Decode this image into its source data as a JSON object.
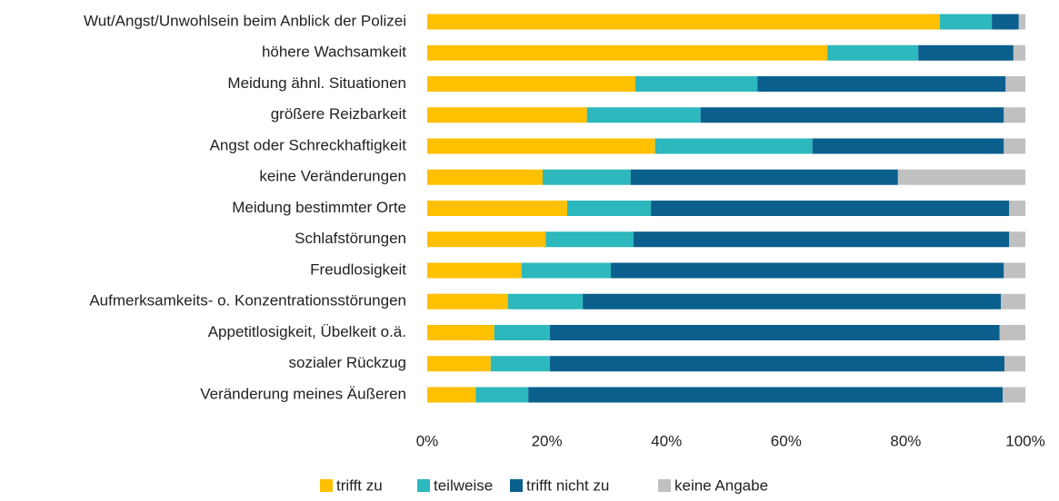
{
  "chart_data": {
    "type": "stacked_bar_horizontal",
    "categories": [
      "Wut/Angst/Unwohlsein beim Anblick der Polizei",
      "höhere Wachsamkeit",
      "Meidung ähnl. Situationen",
      "größere Reizbarkeit",
      "Angst oder Schreckhaftigkeit",
      "keine Veränderungen",
      "Meidung bestimmter Orte",
      "Schlafstörungen",
      "Freudlosigkeit",
      "Aufmerksamkeits- o. Konzentrationsstörungen",
      "Appetitlosigkeit, Übelkeit o.ä.",
      "sozialer Rückzug",
      "Veränderung meines Äußeren"
    ],
    "series": [
      {
        "name": "trifft zu",
        "color": "#FFC000",
        "values": [
          85.7,
          66.9,
          34.8,
          26.7,
          38.1,
          19.3,
          23.4,
          19.8,
          15.8,
          13.5,
          11.2,
          10.6,
          8.1
        ]
      },
      {
        "name": "teilweise",
        "color": "#2CB8BD",
        "values": [
          8.7,
          15.2,
          20.4,
          19.0,
          26.3,
          14.7,
          14.0,
          14.7,
          14.9,
          12.5,
          9.3,
          9.9,
          8.8
        ]
      },
      {
        "name": "trifft nicht zu",
        "color": "#0A5F8C",
        "values": [
          4.5,
          15.9,
          41.5,
          50.7,
          32.0,
          44.7,
          59.9,
          62.8,
          65.7,
          69.9,
          75.2,
          76.0,
          79.3
        ]
      },
      {
        "name": "keine Angabe",
        "color": "#C0C0C0",
        "values": [
          1.1,
          2.0,
          3.3,
          3.6,
          3.6,
          21.3,
          2.7,
          2.7,
          3.6,
          4.1,
          4.3,
          3.5,
          3.8
        ]
      }
    ],
    "xlim": [
      0,
      100
    ],
    "xticks": [
      {
        "value": 0,
        "label": "0%"
      },
      {
        "value": 20,
        "label": "20%"
      },
      {
        "value": 40,
        "label": "40%"
      },
      {
        "value": 60,
        "label": "60%"
      },
      {
        "value": 80,
        "label": "80%"
      },
      {
        "value": 100,
        "label": "100%"
      }
    ],
    "legend": "bottom"
  }
}
